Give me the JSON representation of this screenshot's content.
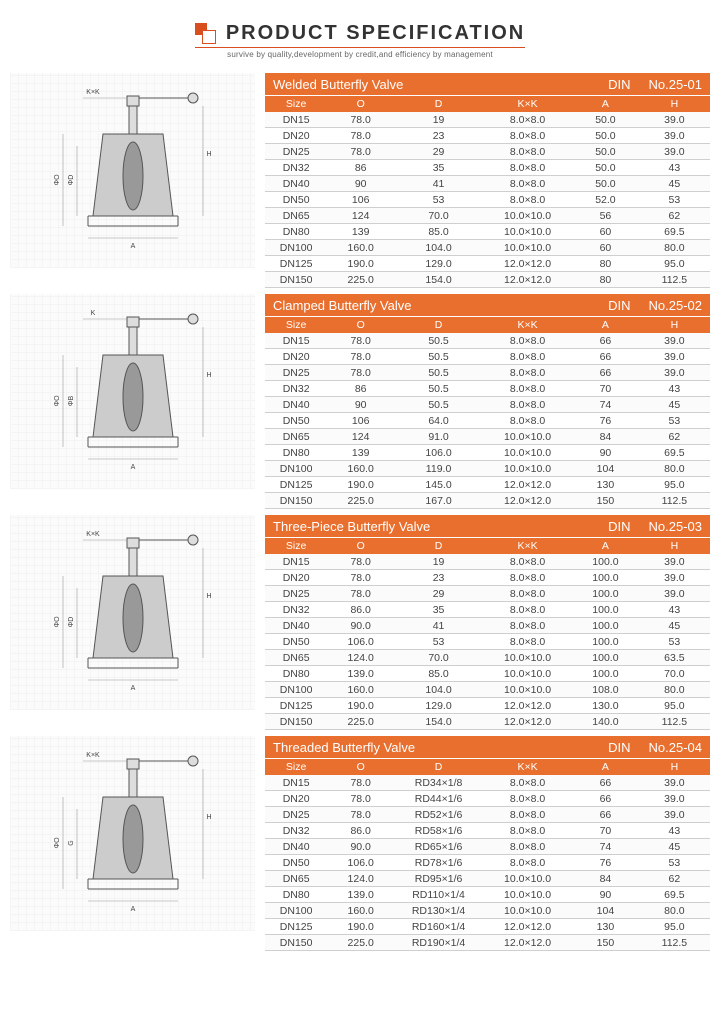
{
  "header": {
    "title_bold": "PRODUCT",
    "title_light": "SPECIFICATION",
    "subtitle": "survive by quality,development by credit,and efficiency by management",
    "accent_color": "#d94e1f"
  },
  "theme": {
    "table_header_bg": "#e96f2e",
    "table_header_fg": "#ffffff",
    "row_border": "#cfcfcf",
    "body_text": "#444444"
  },
  "column_headers": [
    "Size",
    "O",
    "D",
    "K×K",
    "A",
    "H"
  ],
  "diagram_dim_labels": {
    "KxK": "K×K",
    "phiO": "ΦO",
    "phiD": "ΦD",
    "phiB": "ΦB",
    "G": "G",
    "H": "H",
    "A": "A"
  },
  "sections": [
    {
      "title": "Welded Butterfly Valve",
      "standard": "DIN",
      "number": "No.25-01",
      "diagram_dims": [
        "K×K",
        "ΦO",
        "ΦD",
        "H",
        "A"
      ],
      "rows": [
        [
          "DN15",
          "78.0",
          "19",
          "8.0×8.0",
          "50.0",
          "39.0"
        ],
        [
          "DN20",
          "78.0",
          "23",
          "8.0×8.0",
          "50.0",
          "39.0"
        ],
        [
          "DN25",
          "78.0",
          "29",
          "8.0×8.0",
          "50.0",
          "39.0"
        ],
        [
          "DN32",
          "86",
          "35",
          "8.0×8.0",
          "50.0",
          "43"
        ],
        [
          "DN40",
          "90",
          "41",
          "8.0×8.0",
          "50.0",
          "45"
        ],
        [
          "DN50",
          "106",
          "53",
          "8.0×8.0",
          "52.0",
          "53"
        ],
        [
          "DN65",
          "124",
          "70.0",
          "10.0×10.0",
          "56",
          "62"
        ],
        [
          "DN80",
          "139",
          "85.0",
          "10.0×10.0",
          "60",
          "69.5"
        ],
        [
          "DN100",
          "160.0",
          "104.0",
          "10.0×10.0",
          "60",
          "80.0"
        ],
        [
          "DN125",
          "190.0",
          "129.0",
          "12.0×12.0",
          "80",
          "95.0"
        ],
        [
          "DN150",
          "225.0",
          "154.0",
          "12.0×12.0",
          "80",
          "112.5"
        ]
      ]
    },
    {
      "title": "Clamped Butterfly Valve",
      "standard": "DIN",
      "number": "No.25-02",
      "diagram_dims": [
        "K",
        "ΦO",
        "ΦB",
        "H",
        "A"
      ],
      "rows": [
        [
          "DN15",
          "78.0",
          "50.5",
          "8.0×8.0",
          "66",
          "39.0"
        ],
        [
          "DN20",
          "78.0",
          "50.5",
          "8.0×8.0",
          "66",
          "39.0"
        ],
        [
          "DN25",
          "78.0",
          "50.5",
          "8.0×8.0",
          "66",
          "39.0"
        ],
        [
          "DN32",
          "86",
          "50.5",
          "8.0×8.0",
          "70",
          "43"
        ],
        [
          "DN40",
          "90",
          "50.5",
          "8.0×8.0",
          "74",
          "45"
        ],
        [
          "DN50",
          "106",
          "64.0",
          "8.0×8.0",
          "76",
          "53"
        ],
        [
          "DN65",
          "124",
          "91.0",
          "10.0×10.0",
          "84",
          "62"
        ],
        [
          "DN80",
          "139",
          "106.0",
          "10.0×10.0",
          "90",
          "69.5"
        ],
        [
          "DN100",
          "160.0",
          "119.0",
          "10.0×10.0",
          "104",
          "80.0"
        ],
        [
          "DN125",
          "190.0",
          "145.0",
          "12.0×12.0",
          "130",
          "95.0"
        ],
        [
          "DN150",
          "225.0",
          "167.0",
          "12.0×12.0",
          "150",
          "112.5"
        ]
      ]
    },
    {
      "title": "Three-Piece Butterfly Valve",
      "standard": "DIN",
      "number": "No.25-03",
      "diagram_dims": [
        "K×K",
        "ΦO",
        "ΦD",
        "H",
        "A"
      ],
      "rows": [
        [
          "DN15",
          "78.0",
          "19",
          "8.0×8.0",
          "100.0",
          "39.0"
        ],
        [
          "DN20",
          "78.0",
          "23",
          "8.0×8.0",
          "100.0",
          "39.0"
        ],
        [
          "DN25",
          "78.0",
          "29",
          "8.0×8.0",
          "100.0",
          "39.0"
        ],
        [
          "DN32",
          "86.0",
          "35",
          "8.0×8.0",
          "100.0",
          "43"
        ],
        [
          "DN40",
          "90.0",
          "41",
          "8.0×8.0",
          "100.0",
          "45"
        ],
        [
          "DN50",
          "106.0",
          "53",
          "8.0×8.0",
          "100.0",
          "53"
        ],
        [
          "DN65",
          "124.0",
          "70.0",
          "10.0×10.0",
          "100.0",
          "63.5"
        ],
        [
          "DN80",
          "139.0",
          "85.0",
          "10.0×10.0",
          "100.0",
          "70.0"
        ],
        [
          "DN100",
          "160.0",
          "104.0",
          "10.0×10.0",
          "108.0",
          "80.0"
        ],
        [
          "DN125",
          "190.0",
          "129.0",
          "12.0×12.0",
          "130.0",
          "95.0"
        ],
        [
          "DN150",
          "225.0",
          "154.0",
          "12.0×12.0",
          "140.0",
          "112.5"
        ]
      ]
    },
    {
      "title": "Threaded Butterfly Valve",
      "standard": "DIN",
      "number": "No.25-04",
      "diagram_dims": [
        "K×K",
        "ΦO",
        "G",
        "H",
        "A"
      ],
      "rows": [
        [
          "DN15",
          "78.0",
          "RD34×1/8",
          "8.0×8.0",
          "66",
          "39.0"
        ],
        [
          "DN20",
          "78.0",
          "RD44×1/6",
          "8.0×8.0",
          "66",
          "39.0"
        ],
        [
          "DN25",
          "78.0",
          "RD52×1/6",
          "8.0×8.0",
          "66",
          "39.0"
        ],
        [
          "DN32",
          "86.0",
          "RD58×1/6",
          "8.0×8.0",
          "70",
          "43"
        ],
        [
          "DN40",
          "90.0",
          "RD65×1/6",
          "8.0×8.0",
          "74",
          "45"
        ],
        [
          "DN50",
          "106.0",
          "RD78×1/6",
          "8.0×8.0",
          "76",
          "53"
        ],
        [
          "DN65",
          "124.0",
          "RD95×1/6",
          "10.0×10.0",
          "84",
          "62"
        ],
        [
          "DN80",
          "139.0",
          "RD110×1/4",
          "10.0×10.0",
          "90",
          "69.5"
        ],
        [
          "DN100",
          "160.0",
          "RD130×1/4",
          "10.0×10.0",
          "104",
          "80.0"
        ],
        [
          "DN125",
          "190.0",
          "RD160×1/4",
          "12.0×12.0",
          "130",
          "95.0"
        ],
        [
          "DN150",
          "225.0",
          "RD190×1/4",
          "12.0×12.0",
          "150",
          "112.5"
        ]
      ]
    }
  ]
}
